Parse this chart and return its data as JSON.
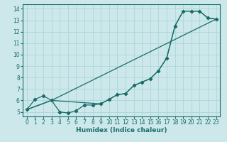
{
  "xlabel": "Humidex (Indice chaleur)",
  "bg_color": "#cce8ea",
  "line_color": "#1a6b6b",
  "grid_color": "#b0d8dc",
  "xlim": [
    -0.5,
    23.5
  ],
  "ylim": [
    4.6,
    14.4
  ],
  "xticks": [
    0,
    1,
    2,
    3,
    4,
    5,
    6,
    7,
    8,
    9,
    10,
    11,
    12,
    13,
    14,
    15,
    16,
    17,
    18,
    19,
    20,
    21,
    22,
    23
  ],
  "yticks": [
    5,
    6,
    7,
    8,
    9,
    10,
    11,
    12,
    13,
    14
  ],
  "line1_x": [
    0,
    1,
    2,
    3,
    4,
    5,
    6,
    7,
    8,
    9,
    10,
    11,
    12,
    13,
    14,
    15,
    16,
    17,
    18,
    19,
    20,
    21,
    22,
    23
  ],
  "line1_y": [
    5.2,
    6.1,
    6.4,
    6.0,
    5.0,
    4.9,
    5.1,
    5.6,
    5.6,
    5.7,
    6.1,
    6.5,
    6.6,
    7.3,
    7.6,
    7.9,
    8.6,
    9.7,
    12.5,
    13.8,
    13.8,
    13.8,
    13.2,
    13.1
  ],
  "line2_x": [
    0,
    3,
    9,
    10,
    11,
    12,
    13,
    14,
    15,
    16,
    17,
    18,
    19,
    20,
    21,
    22,
    23
  ],
  "line2_y": [
    5.2,
    6.0,
    5.7,
    6.1,
    6.5,
    6.6,
    7.3,
    7.6,
    7.9,
    8.6,
    9.7,
    12.5,
    13.8,
    13.8,
    13.8,
    13.2,
    13.1
  ],
  "line3_x": [
    0,
    3,
    23
  ],
  "line3_y": [
    5.2,
    6.0,
    13.1
  ],
  "tick_fontsize": 5.5,
  "xlabel_fontsize": 6.5,
  "lw": 0.9,
  "ms": 2.2
}
